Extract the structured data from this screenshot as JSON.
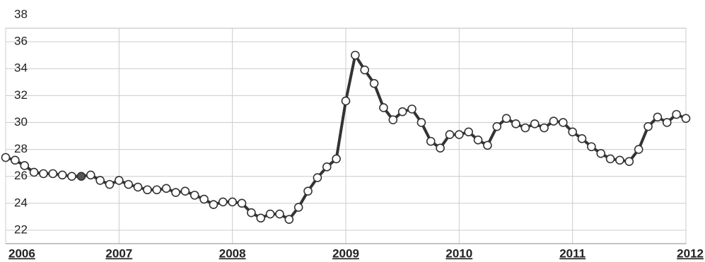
{
  "chart_data": {
    "type": "line",
    "xlim": [
      2006,
      2012
    ],
    "xticks": [
      2006,
      2007,
      2008,
      2009,
      2010,
      2011,
      2012
    ],
    "ylim": [
      21,
      37
    ],
    "yticks": [
      22,
      24,
      26,
      28,
      30,
      32,
      34,
      36,
      38
    ],
    "grid": true,
    "series": [
      {
        "color": "#333333",
        "x": [
          2006,
          2006.0833,
          2006.1667,
          2006.25,
          2006.3333,
          2006.4167,
          2006.5,
          2006.5833,
          2006.6667,
          2006.75,
          2006.8333,
          2006.9167,
          2007,
          2007.0833,
          2007.1667,
          2007.25,
          2007.3333,
          2007.4167,
          2007.5,
          2007.5833,
          2007.6667,
          2007.75,
          2007.8333,
          2007.9167,
          2008,
          2008.0833,
          2008.1667,
          2008.25,
          2008.3333,
          2008.4167,
          2008.5,
          2008.5833,
          2008.6667,
          2008.75,
          2008.8333,
          2008.9167,
          2009,
          2009.0833,
          2009.1667,
          2009.25,
          2009.3333,
          2009.4167,
          2009.5,
          2009.5833,
          2009.6667,
          2009.75,
          2009.8333,
          2009.9167,
          2010,
          2010.0833,
          2010.1667,
          2010.25,
          2010.3333,
          2010.4167,
          2010.5,
          2010.5833,
          2010.6667,
          2010.75,
          2010.8333,
          2010.9167,
          2011,
          2011.0833,
          2011.1667,
          2011.25,
          2011.3333,
          2011.4167,
          2011.5,
          2011.5833,
          2011.6667,
          2011.75,
          2011.8333,
          2011.9167,
          2012
        ],
        "values": [
          27.4,
          27.2,
          26.8,
          26.3,
          26.2,
          26.2,
          26.1,
          26.0,
          26.0,
          26.1,
          25.7,
          25.4,
          25.7,
          25.4,
          25.2,
          25.0,
          25.0,
          25.1,
          24.8,
          24.9,
          24.6,
          24.3,
          23.9,
          24.1,
          24.1,
          24.0,
          23.3,
          22.9,
          23.2,
          23.2,
          22.8,
          23.7,
          24.9,
          25.9,
          26.7,
          27.3,
          31.6,
          35.0,
          33.9,
          32.9,
          31.1,
          30.2,
          30.8,
          31.0,
          30.0,
          28.6,
          28.1,
          29.1,
          29.1,
          29.3,
          28.7,
          28.3,
          29.7,
          30.3,
          29.9,
          29.6,
          29.9,
          29.6,
          30.1,
          30.0,
          29.3,
          28.8,
          28.2,
          27.7,
          27.3,
          27.2,
          27.1,
          28.0,
          29.7,
          30.4,
          30.0,
          30.6,
          30.3
        ]
      }
    ],
    "highlighted_point": 8
  }
}
